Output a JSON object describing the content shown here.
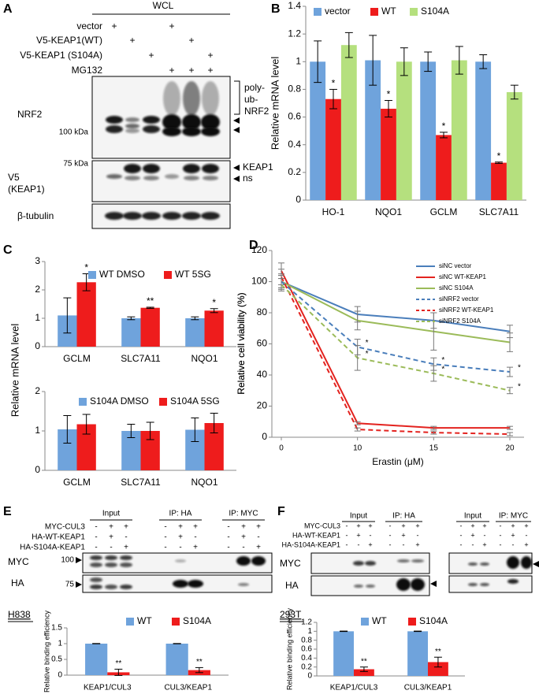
{
  "panel_labels": [
    "A",
    "B",
    "C",
    "D",
    "E",
    "F"
  ],
  "panel_a": {
    "header": "WCL",
    "conditions": [
      {
        "label": "vector",
        "signs": [
          "+",
          null,
          null,
          "+",
          null,
          null
        ]
      },
      {
        "label": "V5-KEAP1(WT)",
        "signs": [
          null,
          "+",
          null,
          null,
          "+",
          null
        ]
      },
      {
        "label": "V5-KEAP1 (S104A)",
        "signs": [
          null,
          null,
          "+",
          null,
          null,
          "+"
        ]
      },
      {
        "label": "MG132",
        "signs": [
          null,
          null,
          null,
          "+",
          "+",
          "+"
        ]
      }
    ],
    "blots": [
      {
        "label": [
          "NRF2"
        ],
        "marker": "100 kDa"
      },
      {
        "label": [
          "V5",
          "(KEAP1)"
        ],
        "marker": "75 kDa"
      },
      {
        "label": [
          "β-tubulin"
        ]
      }
    ],
    "bracket": [
      "poly-",
      "ub-",
      "NRF2"
    ],
    "keap1": "KEAP1",
    "ns": "ns"
  },
  "panel_e": {
    "cell_line": "H838",
    "groups": [
      "Input",
      "IP: HA",
      "IP: MYC"
    ],
    "conditions": [
      {
        "label": "MYC-CUL3",
        "signs": [
          "-",
          "+",
          "+",
          "-",
          "+",
          "+",
          "-",
          "+",
          "+"
        ]
      },
      {
        "label": "HA-WT-KEAP1",
        "signs": [
          "-",
          "+",
          "-",
          "-",
          "+",
          "-",
          "-",
          "+",
          "-"
        ]
      },
      {
        "label": "HA-S104A-KEAP1",
        "signs": [
          "-",
          "-",
          "+",
          "-",
          "-",
          "+",
          "-",
          "-",
          "+"
        ]
      }
    ],
    "blots": [
      "MYC",
      "HA"
    ],
    "markers": [
      "100",
      "75"
    ]
  },
  "panel_f": {
    "cell_line": "293T",
    "groups": [
      "Input",
      "IP: HA",
      "Input",
      "IP: MYC"
    ],
    "conditions": [
      {
        "label": "MYC-CUL3",
        "signs": [
          "-",
          "+",
          "+",
          "-",
          "+",
          "+",
          "-",
          "+",
          "+",
          "-",
          "+",
          "+"
        ]
      },
      {
        "label": "HA-WT-KEAP1",
        "signs": [
          "-",
          "+",
          "-",
          "-",
          "+",
          "-",
          "-",
          "+",
          "-",
          "-",
          "+",
          "-"
        ]
      },
      {
        "label": "HA-S104A-KEAP1",
        "signs": [
          "-",
          "-",
          "+",
          "-",
          "-",
          "+",
          "-",
          "-",
          "+",
          "-",
          "-",
          "+"
        ]
      }
    ],
    "blots": [
      "MYC",
      "HA"
    ]
  },
  "chart_data": [
    {
      "type": "bar",
      "ylabel": "Relative mRNA level",
      "categories": [
        "HO-1",
        "NQO1",
        "GCLM",
        "SLC7A11"
      ],
      "ylim": [
        0,
        1.4
      ],
      "yticks": [
        0,
        0.2,
        0.4,
        0.6,
        0.8,
        1,
        1.2,
        1.4
      ],
      "legend": "top",
      "series": [
        {
          "name": "vector",
          "color": "#6fa3dc",
          "values": [
            1.0,
            1.01,
            1.0,
            1.0
          ],
          "errors": [
            0.15,
            0.18,
            0.07,
            0.05
          ]
        },
        {
          "name": "WT",
          "color": "#ee1c1c",
          "values": [
            0.73,
            0.66,
            0.47,
            0.27
          ],
          "errors": [
            0.07,
            0.06,
            0.02,
            0.005
          ],
          "stars": [
            "*",
            "*",
            "*",
            "*"
          ]
        },
        {
          "name": "S104A",
          "color": "#b5e07e",
          "values": [
            1.12,
            1.0,
            1.01,
            0.78
          ],
          "errors": [
            0.09,
            0.1,
            0.1,
            0.05
          ]
        }
      ]
    },
    {
      "type": "bar",
      "ylabel": "Relative mRNA level",
      "categories": [
        "GCLM",
        "SLC7A11",
        "NQO1"
      ],
      "ylim": [
        0,
        3
      ],
      "yticks": [
        0,
        1,
        2,
        3
      ],
      "legend": "top",
      "series": [
        {
          "name": "WT DMSO",
          "color": "#6fa3dc",
          "values": [
            1.1,
            1.0,
            1.0
          ],
          "errors": [
            0.62,
            0.05,
            0.05
          ]
        },
        {
          "name": "WT 5SG",
          "color": "#ee1c1c",
          "values": [
            2.27,
            1.37,
            1.27
          ],
          "errors": [
            0.3,
            0.02,
            0.07
          ],
          "stars": [
            "*",
            "**",
            "*"
          ]
        }
      ]
    },
    {
      "type": "bar",
      "categories": [
        "GCLM",
        "SLC7A11",
        "NQO1"
      ],
      "ylim": [
        0,
        2
      ],
      "yticks": [
        0,
        1,
        2
      ],
      "legend": "top",
      "series": [
        {
          "name": "S104A DMSO",
          "color": "#6fa3dc",
          "values": [
            1.04,
            1.0,
            1.03
          ],
          "errors": [
            0.35,
            0.17,
            0.3
          ]
        },
        {
          "name": "S104A 5SG",
          "color": "#ee1c1c",
          "values": [
            1.17,
            1.0,
            1.2
          ],
          "errors": [
            0.25,
            0.22,
            0.25
          ]
        }
      ]
    },
    {
      "type": "line",
      "xlabel": "Erastin (μM)",
      "ylabel": "Relative cell viability (%)",
      "categories": [
        "0",
        "10",
        "15",
        "20"
      ],
      "ylim": [
        0,
        120
      ],
      "yticks": [
        0,
        20,
        40,
        60,
        80,
        100,
        120
      ],
      "legend": "upper right",
      "series": [
        {
          "name": "siNC vector",
          "color": "#4a7ebb",
          "dashed": false,
          "values": [
            100,
            79,
            75,
            68
          ],
          "errors": [
            4,
            5,
            5,
            4
          ]
        },
        {
          "name": "siNC WT-KEAP1",
          "color": "#e3231f",
          "dashed": false,
          "values": [
            107,
            9,
            6,
            6
          ],
          "errors": [
            5,
            1,
            1,
            1
          ]
        },
        {
          "name": "siNC S104A",
          "color": "#9bbb59",
          "dashed": false,
          "values": [
            100,
            75,
            68,
            61
          ],
          "errors": [
            4,
            6,
            12,
            6
          ]
        },
        {
          "name": "siNRF2 vector",
          "color": "#4a7ebb",
          "dashed": true,
          "values": [
            100,
            58,
            47,
            42
          ],
          "errors": [
            5,
            5,
            4,
            3
          ],
          "stars": [
            null,
            "*",
            "*",
            "*"
          ]
        },
        {
          "name": "siNRF2 WT-KEAP1",
          "color": "#e3231f",
          "dashed": true,
          "values": [
            103,
            5,
            3,
            2
          ],
          "errors": [
            5,
            1,
            1,
            1
          ]
        },
        {
          "name": "siNRF2 S104A",
          "color": "#9bbb59",
          "dashed": true,
          "values": [
            98,
            51,
            41,
            30
          ],
          "errors": [
            4,
            8,
            5,
            2
          ],
          "stars": [
            null,
            "*",
            "*",
            "*"
          ]
        }
      ]
    },
    {
      "type": "bar",
      "ylabel": "Relative binding efficiency",
      "categories": [
        "KEAP1/CUL3",
        "CUL3/KEAP1"
      ],
      "ylim": [
        0,
        1.5
      ],
      "yticks": [
        0,
        0.5,
        1,
        1.5
      ],
      "legend": "top",
      "series": [
        {
          "name": "WT",
          "color": "#6fa3dc",
          "values": [
            1,
            1
          ],
          "errors": [
            0.005,
            0.005
          ]
        },
        {
          "name": "S104A",
          "color": "#ee1c1c",
          "values": [
            0.09,
            0.16
          ],
          "errors": [
            0.1,
            0.08
          ],
          "stars": [
            "**",
            "**"
          ]
        }
      ]
    },
    {
      "type": "bar",
      "ylabel": "Relative binding efficiency",
      "categories": [
        "KEAP1/CUL3",
        "CUL3/KEAP1"
      ],
      "ylim": [
        0,
        1.2
      ],
      "yticks": [
        0,
        0.2,
        0.4,
        0.6,
        0.8,
        1,
        1.2
      ],
      "legend": "top",
      "series": [
        {
          "name": "WT",
          "color": "#6fa3dc",
          "values": [
            1,
            1
          ],
          "errors": [
            0.005,
            0.005
          ]
        },
        {
          "name": "S104A",
          "color": "#ee1c1c",
          "values": [
            0.15,
            0.31
          ],
          "errors": [
            0.05,
            0.11
          ],
          "stars": [
            "**",
            "**"
          ]
        }
      ]
    }
  ]
}
